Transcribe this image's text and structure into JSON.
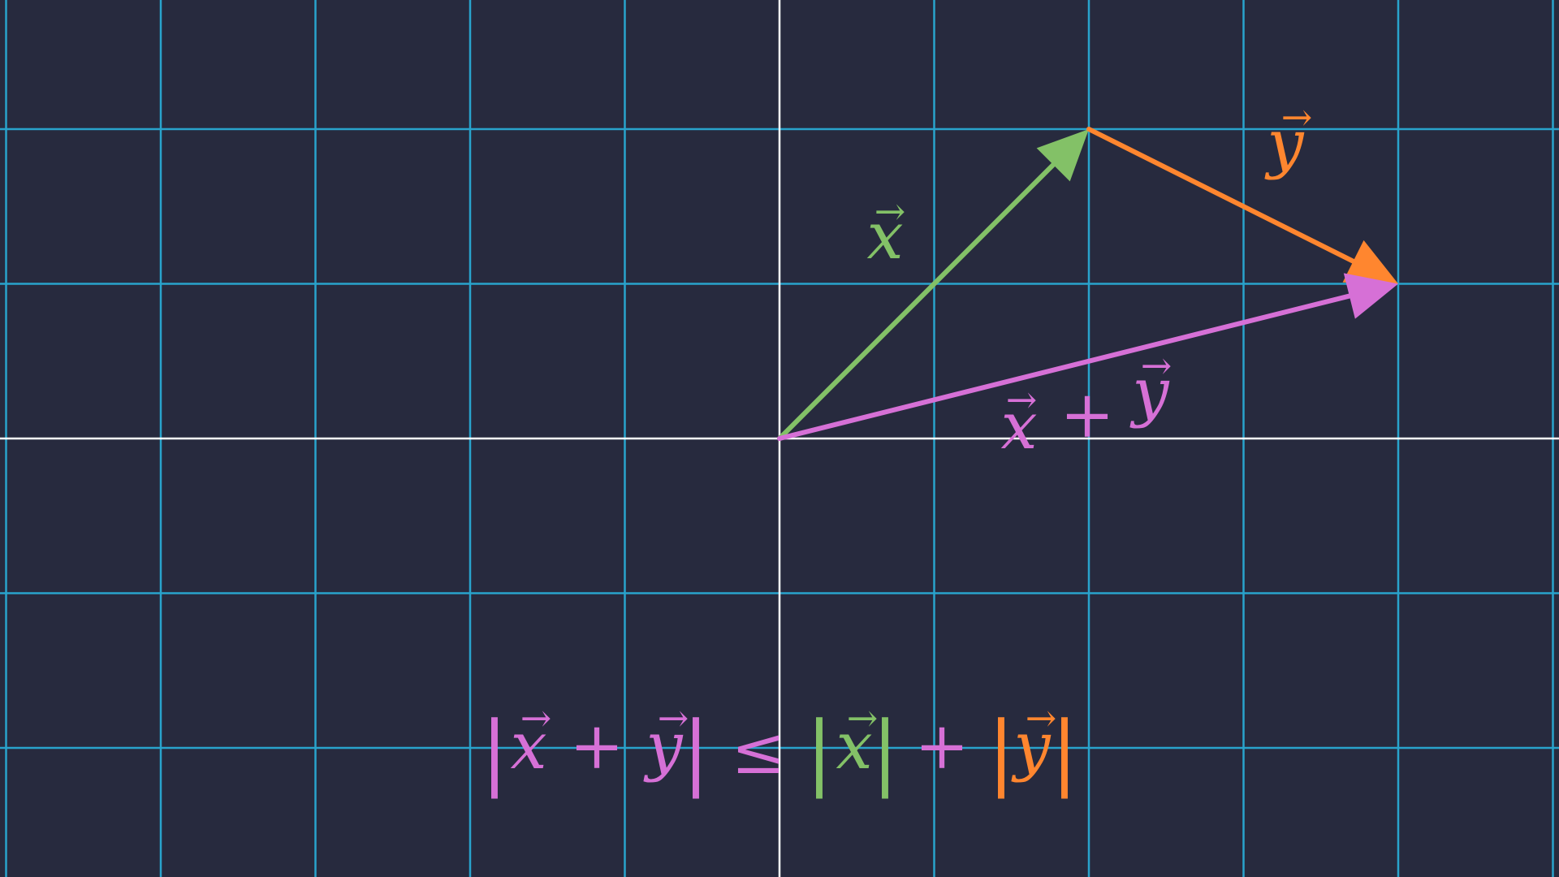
{
  "colors": {
    "background": "#272a3e",
    "grid": "#29a3cc",
    "axis": "#ffffff",
    "vector_x": "#83c167",
    "vector_y": "#ff862f",
    "vector_sum": "#d670d6"
  },
  "plane": {
    "x_range": [
      -5,
      5
    ],
    "y_range": [
      -3,
      3
    ]
  },
  "vectors": {
    "x": {
      "label": "x",
      "arrow": "→",
      "components": [
        2,
        2
      ]
    },
    "y": {
      "label": "y",
      "arrow": "→",
      "components": [
        2,
        -1
      ]
    },
    "sum": {
      "label_x": "x",
      "label_plus": "+",
      "label_y": "y",
      "arrow": "→",
      "components": [
        4,
        1
      ]
    }
  },
  "inequality": {
    "bar": "|",
    "x": "x",
    "plus": "+",
    "y": "y",
    "leq": "≤",
    "arrow": "→"
  }
}
